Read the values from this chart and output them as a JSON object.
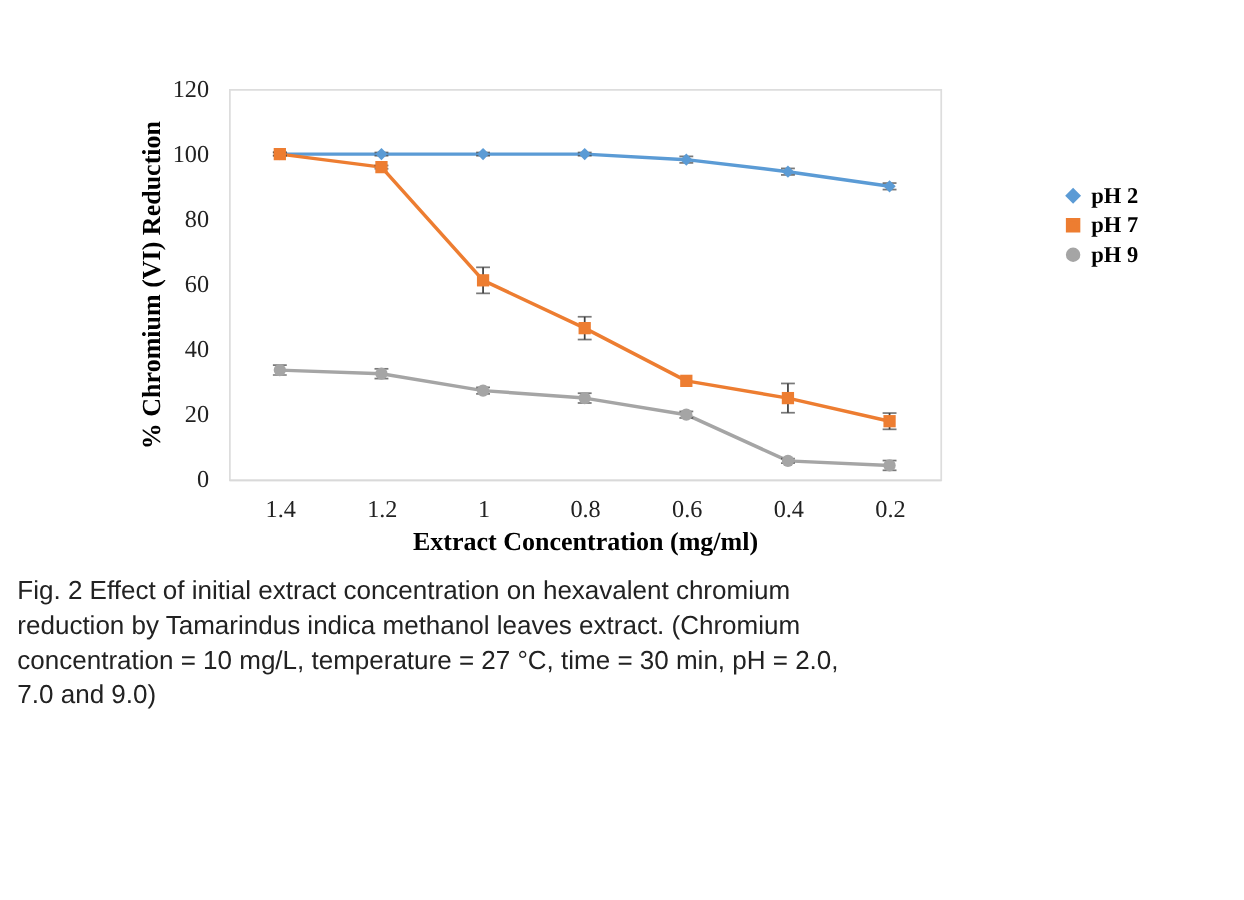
{
  "chart_data": {
    "type": "line",
    "xlabel": "Extract Concentration (mg/ml)",
    "ylabel": "% Chromium (VI) Reduction",
    "categories": [
      "1.4",
      "1.2",
      "1",
      "0.8",
      "0.6",
      "0.4",
      "0.2"
    ],
    "series": [
      {
        "name": "pH 2",
        "color": "#5b9bd5",
        "marker": "diamond",
        "values": [
          100,
          100,
          100,
          100,
          98.3,
          94.6,
          90.1
        ],
        "errors": [
          0.5,
          0.5,
          0.5,
          0.5,
          1,
          1,
          1
        ]
      },
      {
        "name": "pH 7",
        "color": "#ed7d31",
        "marker": "square",
        "values": [
          100,
          96,
          61.2,
          46.5,
          30.3,
          25,
          17.9
        ],
        "errors": [
          0.5,
          0.5,
          4,
          3.5,
          null,
          4.5,
          2.5
        ]
      },
      {
        "name": "pH 9",
        "color": "#a5a5a5",
        "marker": "circle",
        "values": [
          33.6,
          32.5,
          27.3,
          25,
          19.9,
          5.7,
          4.3
        ],
        "errors": [
          1.5,
          1.5,
          1,
          1.5,
          1,
          0.7,
          1.5
        ]
      }
    ],
    "ylim": [
      0,
      120
    ],
    "yticks": [
      0,
      20,
      40,
      60,
      80,
      100,
      120
    ],
    "grid": false,
    "legend": "right",
    "line_style": "solid",
    "annotations": [
      "Fig. 2  Effect of initial extract concentration on hexavalent chromium reduction by Tamarindus indica methanol leaves extract. (Chromium concentration = 10 mg/L, temperature = 27 °C, time = 30 min, pH = 2.0, 7.0 and 9.0)"
    ]
  }
}
